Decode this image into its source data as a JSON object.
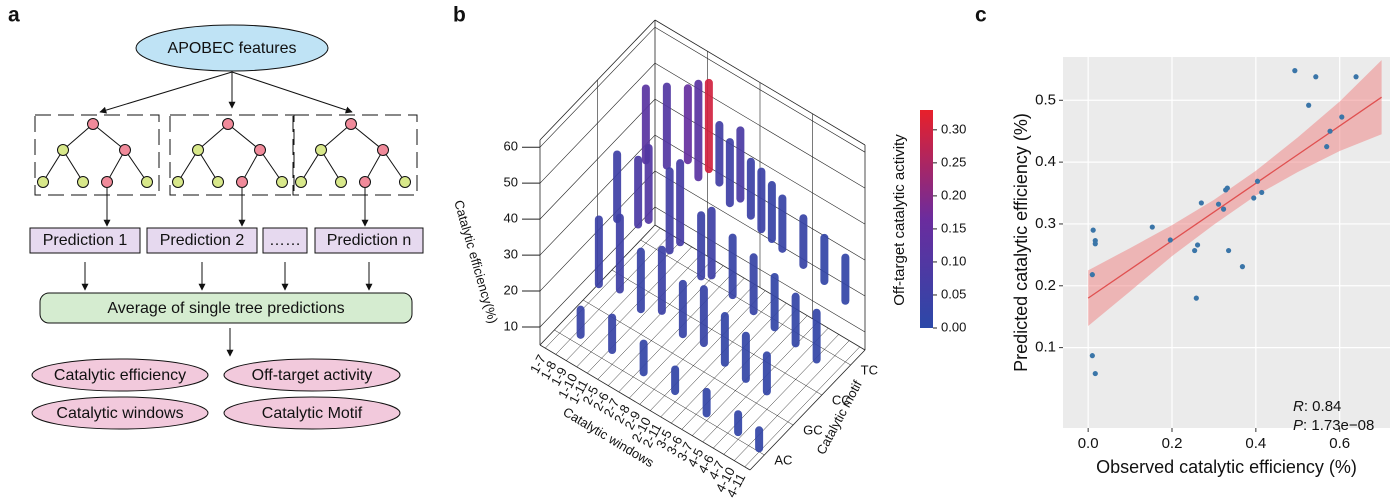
{
  "panel_labels": [
    "a",
    "b",
    "c"
  ],
  "diagram": {
    "input": "APOBEC features",
    "predictions": [
      "Prediction 1",
      "Prediction 2",
      "……",
      "Prediction n"
    ],
    "aggregate": "Average of single tree predictions",
    "outputs": [
      "Catalytic efficiency",
      "Off-target activity",
      "Catalytic windows",
      "Catalytic Motif"
    ]
  },
  "chart_data": [
    {
      "type": "scatter3d",
      "z_label": "Catalytic efficiency(%)",
      "x_label": "Catalytic windows",
      "y_label": "Catalytic motif",
      "colorbar_label": "Off-target catalytic activity",
      "windows": [
        "1-7",
        "1-8",
        "1-9",
        "1-10",
        "1-11",
        "2-5",
        "2-6",
        "2-7",
        "2-8",
        "2-9",
        "2-10",
        "2-11",
        "3-5",
        "3-6",
        "3-7",
        "4-5",
        "4-6",
        "4-7",
        "4-10",
        "4-11"
      ],
      "motifs": [
        "TC",
        "CC",
        "GC",
        "AC"
      ],
      "zlim": [
        5,
        62
      ],
      "zticks": [
        10,
        20,
        30,
        40,
        50,
        60
      ],
      "clim": [
        0,
        0.33
      ],
      "cticks": [
        {
          "value": 0,
          "label": "0.00"
        },
        {
          "value": 0.05,
          "label": "0.05"
        },
        {
          "value": 0.1,
          "label": "0.10"
        },
        {
          "value": 0.15,
          "label": "0.15"
        },
        {
          "value": 0.2,
          "label": "0.20"
        },
        {
          "value": 0.25,
          "label": "0.25"
        },
        {
          "value": 0.3,
          "label": "0.30"
        }
      ],
      "colormap": [
        "#2b48a8",
        "#6b2c9e",
        "#e8202a"
      ],
      "columns": [
        {
          "window": 0,
          "motif": 0,
          "efficiency": [
            28,
            48
          ],
          "activity": 0.12
        },
        {
          "window": 2,
          "motif": 0,
          "efficiency": [
            30,
            52
          ],
          "activity": 0.1
        },
        {
          "window": 4,
          "motif": 0,
          "efficiency": [
            35,
            55
          ],
          "activity": 0.15
        },
        {
          "window": 5,
          "motif": 0,
          "efficiency": [
            32,
            58
          ],
          "activity": 0.12
        },
        {
          "window": 6,
          "motif": 0,
          "efficiency": [
            36,
            60
          ],
          "activity": 0.3
        },
        {
          "window": 7,
          "motif": 0,
          "efficiency": [
            34,
            50
          ],
          "activity": 0.06
        },
        {
          "window": 8,
          "motif": 0,
          "efficiency": [
            30,
            47
          ],
          "activity": 0.05
        },
        {
          "window": 9,
          "motif": 0,
          "efficiency": [
            33,
            52
          ],
          "activity": 0.08
        },
        {
          "window": 10,
          "motif": 0,
          "efficiency": [
            30,
            45
          ],
          "activity": 0.04
        },
        {
          "window": 11,
          "motif": 0,
          "efficiency": [
            28,
            44
          ],
          "activity": 0.04
        },
        {
          "window": 12,
          "motif": 0,
          "efficiency": [
            27,
            42
          ],
          "activity": 0.03
        },
        {
          "window": 13,
          "motif": 0,
          "efficiency": [
            26,
            40
          ],
          "activity": 0.03
        },
        {
          "window": 15,
          "motif": 0,
          "efficiency": [
            25,
            38
          ],
          "activity": 0.03
        },
        {
          "window": 17,
          "motif": 0,
          "efficiency": [
            24,
            36
          ],
          "activity": 0.02
        },
        {
          "window": 19,
          "motif": 0,
          "efficiency": [
            22,
            34
          ],
          "activity": 0.02
        },
        {
          "window": 0,
          "motif": 1,
          "efficiency": [
            20,
            38
          ],
          "activity": 0.05
        },
        {
          "window": 2,
          "motif": 1,
          "efficiency": [
            22,
            40
          ],
          "activity": 0.08
        },
        {
          "window": 3,
          "motif": 1,
          "efficiency": [
            25,
            45
          ],
          "activity": 0.1
        },
        {
          "window": 5,
          "motif": 1,
          "efficiency": [
            20,
            42
          ],
          "activity": 0.06
        },
        {
          "window": 6,
          "motif": 1,
          "efficiency": [
            24,
            46
          ],
          "activity": 0.07
        },
        {
          "window": 8,
          "motif": 1,
          "efficiency": [
            18,
            35
          ],
          "activity": 0.04
        },
        {
          "window": 9,
          "motif": 1,
          "efficiency": [
            20,
            38
          ],
          "activity": 0.05
        },
        {
          "window": 11,
          "motif": 1,
          "efficiency": [
            18,
            34
          ],
          "activity": 0.03
        },
        {
          "window": 13,
          "motif": 1,
          "efficiency": [
            17,
            32
          ],
          "activity": 0.03
        },
        {
          "window": 15,
          "motif": 1,
          "efficiency": [
            16,
            30
          ],
          "activity": 0.02
        },
        {
          "window": 17,
          "motif": 1,
          "efficiency": [
            15,
            28
          ],
          "activity": 0.02
        },
        {
          "window": 19,
          "motif": 1,
          "efficiency": [
            14,
            27
          ],
          "activity": 0.02
        },
        {
          "window": 1,
          "motif": 2,
          "efficiency": [
            12,
            30
          ],
          "activity": 0.04
        },
        {
          "window": 3,
          "motif": 2,
          "efficiency": [
            14,
            34
          ],
          "activity": 0.05
        },
        {
          "window": 5,
          "motif": 2,
          "efficiency": [
            12,
            28
          ],
          "activity": 0.03
        },
        {
          "window": 7,
          "motif": 2,
          "efficiency": [
            15,
            32
          ],
          "activity": 0.04
        },
        {
          "window": 9,
          "motif": 2,
          "efficiency": [
            12,
            26
          ],
          "activity": 0.03
        },
        {
          "window": 11,
          "motif": 2,
          "efficiency": [
            13,
            28
          ],
          "activity": 0.03
        },
        {
          "window": 13,
          "motif": 2,
          "efficiency": [
            11,
            24
          ],
          "activity": 0.02
        },
        {
          "window": 15,
          "motif": 2,
          "efficiency": [
            10,
            22
          ],
          "activity": 0.02
        },
        {
          "window": 17,
          "motif": 2,
          "efficiency": [
            10,
            20
          ],
          "activity": 0.02
        },
        {
          "window": 2,
          "motif": 3,
          "efficiency": [
            8,
            15
          ],
          "activity": 0.03
        },
        {
          "window": 5,
          "motif": 3,
          "efficiency": [
            9,
            18
          ],
          "activity": 0.03
        },
        {
          "window": 8,
          "motif": 3,
          "efficiency": [
            8,
            16
          ],
          "activity": 0.02
        },
        {
          "window": 11,
          "motif": 3,
          "efficiency": [
            8,
            14
          ],
          "activity": 0.02
        },
        {
          "window": 14,
          "motif": 3,
          "efficiency": [
            7,
            13
          ],
          "activity": 0.02
        },
        {
          "window": 17,
          "motif": 3,
          "efficiency": [
            7,
            12
          ],
          "activity": 0.02
        },
        {
          "window": 19,
          "motif": 3,
          "efficiency": [
            6,
            11
          ],
          "activity": 0.02
        }
      ]
    },
    {
      "type": "scatter",
      "x_label": "Observed catalytic efficiency (%)",
      "y_label": "Predicted catalytic efficiency (%)",
      "xlim": [
        -0.06,
        0.72
      ],
      "ylim": [
        -0.03,
        0.57
      ],
      "xticks": [
        {
          "value": 0,
          "label": "0.0"
        },
        0.2,
        0.4,
        0.6
      ],
      "yticks": [
        0.1,
        0.2,
        0.3,
        0.4,
        0.5
      ],
      "grid": true,
      "color": "#3a75a8",
      "fit_color": "#e05050",
      "band_color": "#f08080",
      "x": [
        0.012,
        0.017,
        0.017,
        0.01,
        0.01,
        0.017,
        0.153,
        0.196,
        0.254,
        0.261,
        0.258,
        0.27,
        0.311,
        0.323,
        0.332,
        0.328,
        0.335,
        0.395,
        0.404,
        0.414,
        0.368,
        0.493,
        0.526,
        0.543,
        0.577,
        0.605,
        0.569,
        0.639
      ],
      "y": [
        0.29,
        0.273,
        0.268,
        0.218,
        0.087,
        0.058,
        0.295,
        0.274,
        0.257,
        0.266,
        0.18,
        0.334,
        0.332,
        0.324,
        0.358,
        0.355,
        0.257,
        0.342,
        0.369,
        0.351,
        0.231,
        0.548,
        0.492,
        0.538,
        0.45,
        0.473,
        0.425,
        0.538
      ],
      "fit": {
        "x": [
          0,
          0.7
        ],
        "y": [
          0.18,
          0.505
        ]
      },
      "band": {
        "x": [
          0,
          0.1,
          0.2,
          0.3,
          0.4,
          0.5,
          0.6,
          0.7
        ],
        "lower": [
          0.135,
          0.191,
          0.248,
          0.299,
          0.346,
          0.384,
          0.418,
          0.445
        ],
        "upper": [
          0.225,
          0.261,
          0.298,
          0.339,
          0.386,
          0.44,
          0.498,
          0.565
        ]
      },
      "annotations": [
        {
          "symbol": "R",
          "text": ": 0.84"
        },
        {
          "symbol": "P",
          "text": ": 1.73e−08"
        }
      ]
    }
  ]
}
